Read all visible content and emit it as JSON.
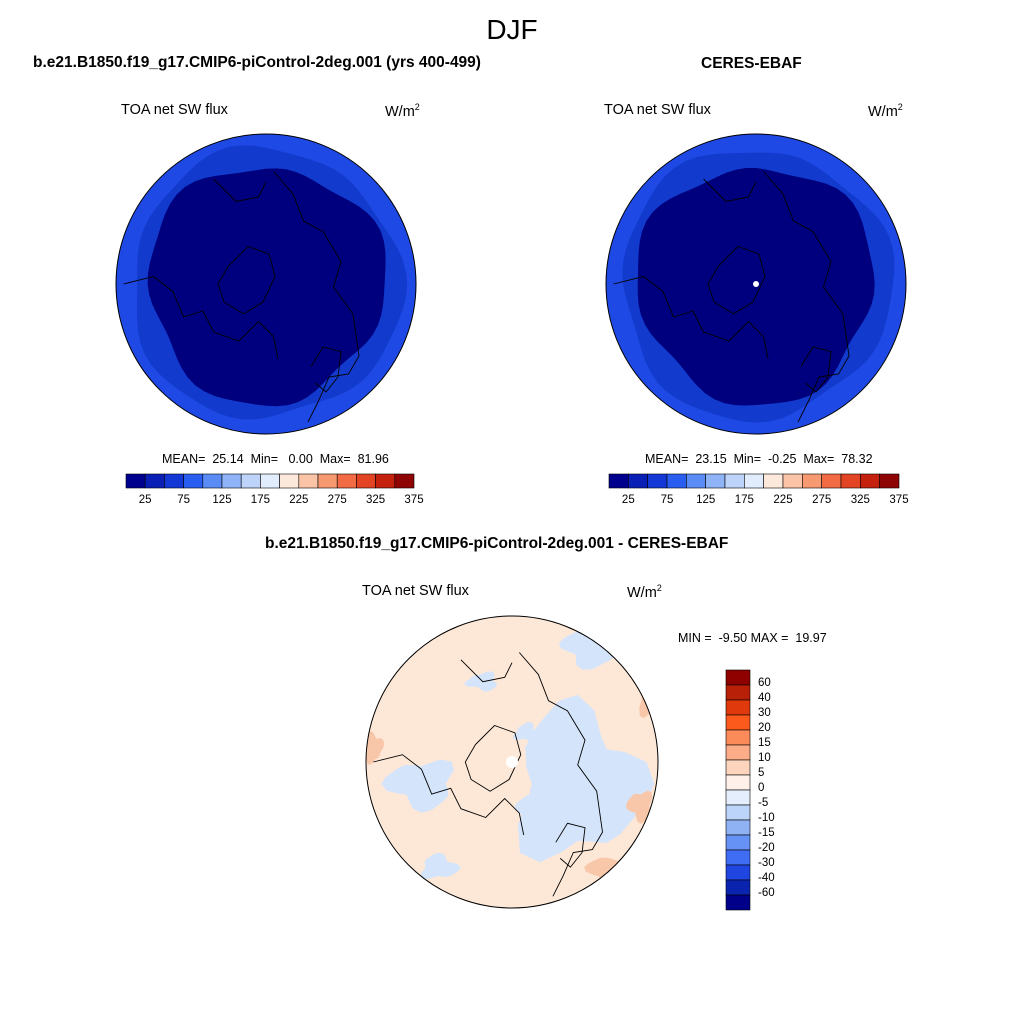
{
  "season": "DJF",
  "panels": [
    {
      "title": "b.e21.B1850.f19_g17.CMIP6-piControl-2deg.001 (yrs 400-499)",
      "variable": "TOA net SW flux",
      "units_base": "W/m",
      "units_exp": "2",
      "stats": "MEAN=  25.14  Min=   0.00  Max=  81.96"
    },
    {
      "title": "CERES-EBAF",
      "variable": "TOA net SW flux",
      "units_base": "W/m",
      "units_exp": "2",
      "stats": "MEAN=  23.15  Min=  -0.25  Max=  78.32"
    },
    {
      "title": "b.e21.B1850.f19_g17.CMIP6-piControl-2deg.001 - CERES-EBAF",
      "variable": "TOA net SW flux",
      "units_base": "W/m",
      "units_exp": "2",
      "stats": "MIN =  -9.50 MAX =  19.97"
    }
  ],
  "chart_data": [
    {
      "type": "heatmap",
      "projection": "north polar stereographic",
      "title": "b.e21.B1850.f19_g17.CMIP6-piControl-2deg.001 (yrs 400-499)",
      "variable": "TOA net SW flux",
      "units": "W/m2",
      "mean": 25.14,
      "min": 0.0,
      "max": 81.96,
      "colorbar_ticks": [
        "25",
        "75",
        "125",
        "175",
        "225",
        "275",
        "325",
        "375"
      ],
      "colorbar_colors": [
        "#00008f",
        "#0a1fb5",
        "#1438d6",
        "#2a5ef0",
        "#5b8cf5",
        "#8fb3f7",
        "#bdd3fa",
        "#e1ecfc",
        "#fde9dc",
        "#fbc4a6",
        "#f79a72",
        "#f26b44",
        "#e24424",
        "#c4220f",
        "#8f0505"
      ]
    },
    {
      "type": "heatmap",
      "projection": "north polar stereographic",
      "title": "CERES-EBAF",
      "variable": "TOA net SW flux",
      "units": "W/m2",
      "mean": 23.15,
      "min": -0.25,
      "max": 78.32,
      "colorbar_ticks": [
        "25",
        "75",
        "125",
        "175",
        "225",
        "275",
        "325",
        "375"
      ],
      "colorbar_colors": [
        "#00008f",
        "#0a1fb5",
        "#1438d6",
        "#2a5ef0",
        "#5b8cf5",
        "#8fb3f7",
        "#bdd3fa",
        "#e1ecfc",
        "#fde9dc",
        "#fbc4a6",
        "#f79a72",
        "#f26b44",
        "#e24424",
        "#c4220f",
        "#8f0505"
      ]
    },
    {
      "type": "heatmap",
      "projection": "north polar stereographic",
      "title": "b.e21.B1850.f19_g17.CMIP6-piControl-2deg.001 - CERES-EBAF",
      "variable": "TOA net SW flux",
      "units": "W/m2",
      "min": -9.5,
      "max": 19.97,
      "colorbar_ticks": [
        "60",
        "40",
        "30",
        "20",
        "15",
        "10",
        "5",
        "0",
        "-5",
        "-10",
        "-15",
        "-20",
        "-30",
        "-40",
        "-60"
      ],
      "colorbar_colors": [
        "#8f0000",
        "#b82007",
        "#e0390b",
        "#fb5a1c",
        "#fc8b5a",
        "#fcac86",
        "#fdd5bc",
        "#fff0ea",
        "#e5eefc",
        "#bcd3fa",
        "#8fb2f5",
        "#6692f5",
        "#3f6ef5",
        "#1f46e0",
        "#0a24b0",
        "#00008a"
      ]
    }
  ],
  "colors": {
    "map_outer": "#1f49e4",
    "map_mid": "#123bcd",
    "map_inner": "#00007e",
    "diff_base": "#fde8d8",
    "diff_neg": "#d4e4fb",
    "diff_pos": "#f8c6a8",
    "coast": "#000000"
  }
}
